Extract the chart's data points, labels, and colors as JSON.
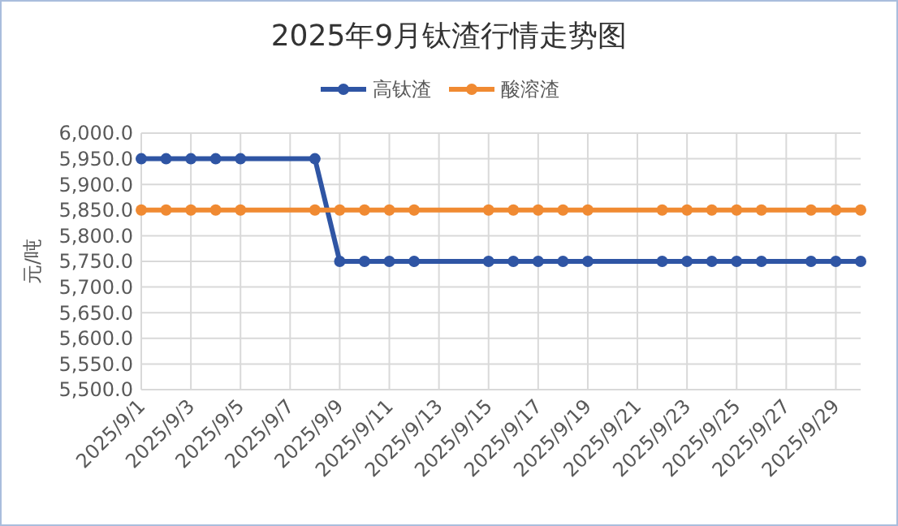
{
  "chart_data": {
    "type": "line",
    "title": "2025年9月钛渣行情走势图",
    "ylabel": "元/吨",
    "x": [
      "2025-09-01",
      "2025-09-02",
      "2025-09-03",
      "2025-09-04",
      "2025-09-05",
      "2025-09-08",
      "2025-09-09",
      "2025-09-10",
      "2025-09-11",
      "2025-09-12",
      "2025-09-15",
      "2025-09-16",
      "2025-09-17",
      "2025-09-18",
      "2025-09-19",
      "2025-09-22",
      "2025-09-23",
      "2025-09-24",
      "2025-09-25",
      "2025-09-26",
      "2025-09-28",
      "2025-09-29",
      "2025-09-30"
    ],
    "series": [
      {
        "name": "高钛渣",
        "color": "#2f55a4",
        "values": [
          5950,
          5950,
          5950,
          5950,
          5950,
          5950,
          5750,
          5750,
          5750,
          5750,
          5750,
          5750,
          5750,
          5750,
          5750,
          5750,
          5750,
          5750,
          5750,
          5750,
          5750,
          5750,
          5750
        ]
      },
      {
        "name": "酸溶渣",
        "color": "#f08a32",
        "values": [
          5850,
          5850,
          5850,
          5850,
          5850,
          5850,
          5850,
          5850,
          5850,
          5850,
          5850,
          5850,
          5850,
          5850,
          5850,
          5850,
          5850,
          5850,
          5850,
          5850,
          5850,
          5850,
          5850
        ]
      }
    ],
    "xlim": [
      "2025-09-01",
      "2025-09-30"
    ],
    "xticks": [
      {
        "value": "2025-09-01",
        "label": "2025/9/1"
      },
      {
        "value": "2025-09-03",
        "label": "2025/9/3"
      },
      {
        "value": "2025-09-05",
        "label": "2025/9/5"
      },
      {
        "value": "2025-09-07",
        "label": "2025/9/7"
      },
      {
        "value": "2025-09-09",
        "label": "2025/9/9"
      },
      {
        "value": "2025-09-11",
        "label": "2025/9/11"
      },
      {
        "value": "2025-09-13",
        "label": "2025/9/13"
      },
      {
        "value": "2025-09-15",
        "label": "2025/9/15"
      },
      {
        "value": "2025-09-17",
        "label": "2025/9/17"
      },
      {
        "value": "2025-09-19",
        "label": "2025/9/19"
      },
      {
        "value": "2025-09-21",
        "label": "2025/9/21"
      },
      {
        "value": "2025-09-23",
        "label": "2025/9/23"
      },
      {
        "value": "2025-09-25",
        "label": "2025/9/25"
      },
      {
        "value": "2025-09-27",
        "label": "2025/9/27"
      },
      {
        "value": "2025-09-29",
        "label": "2025/9/29"
      }
    ],
    "ylim": [
      5500,
      6000
    ],
    "yticks": [
      {
        "value": 5500,
        "label": "5,500.0"
      },
      {
        "value": 5550,
        "label": "5,550.0"
      },
      {
        "value": 5600,
        "label": "5,600.0"
      },
      {
        "value": 5650,
        "label": "5,650.0"
      },
      {
        "value": 5700,
        "label": "5,700.0"
      },
      {
        "value": 5750,
        "label": "5,750.0"
      },
      {
        "value": 5800,
        "label": "5,800.0"
      },
      {
        "value": 5850,
        "label": "5,850.0"
      },
      {
        "value": 5900,
        "label": "5,900.0"
      },
      {
        "value": 5950,
        "label": "5,950.0"
      },
      {
        "value": 6000,
        "label": "6,000.0"
      }
    ],
    "grid": true,
    "legend": "top",
    "marker": "circle",
    "line_style": "solid"
  }
}
